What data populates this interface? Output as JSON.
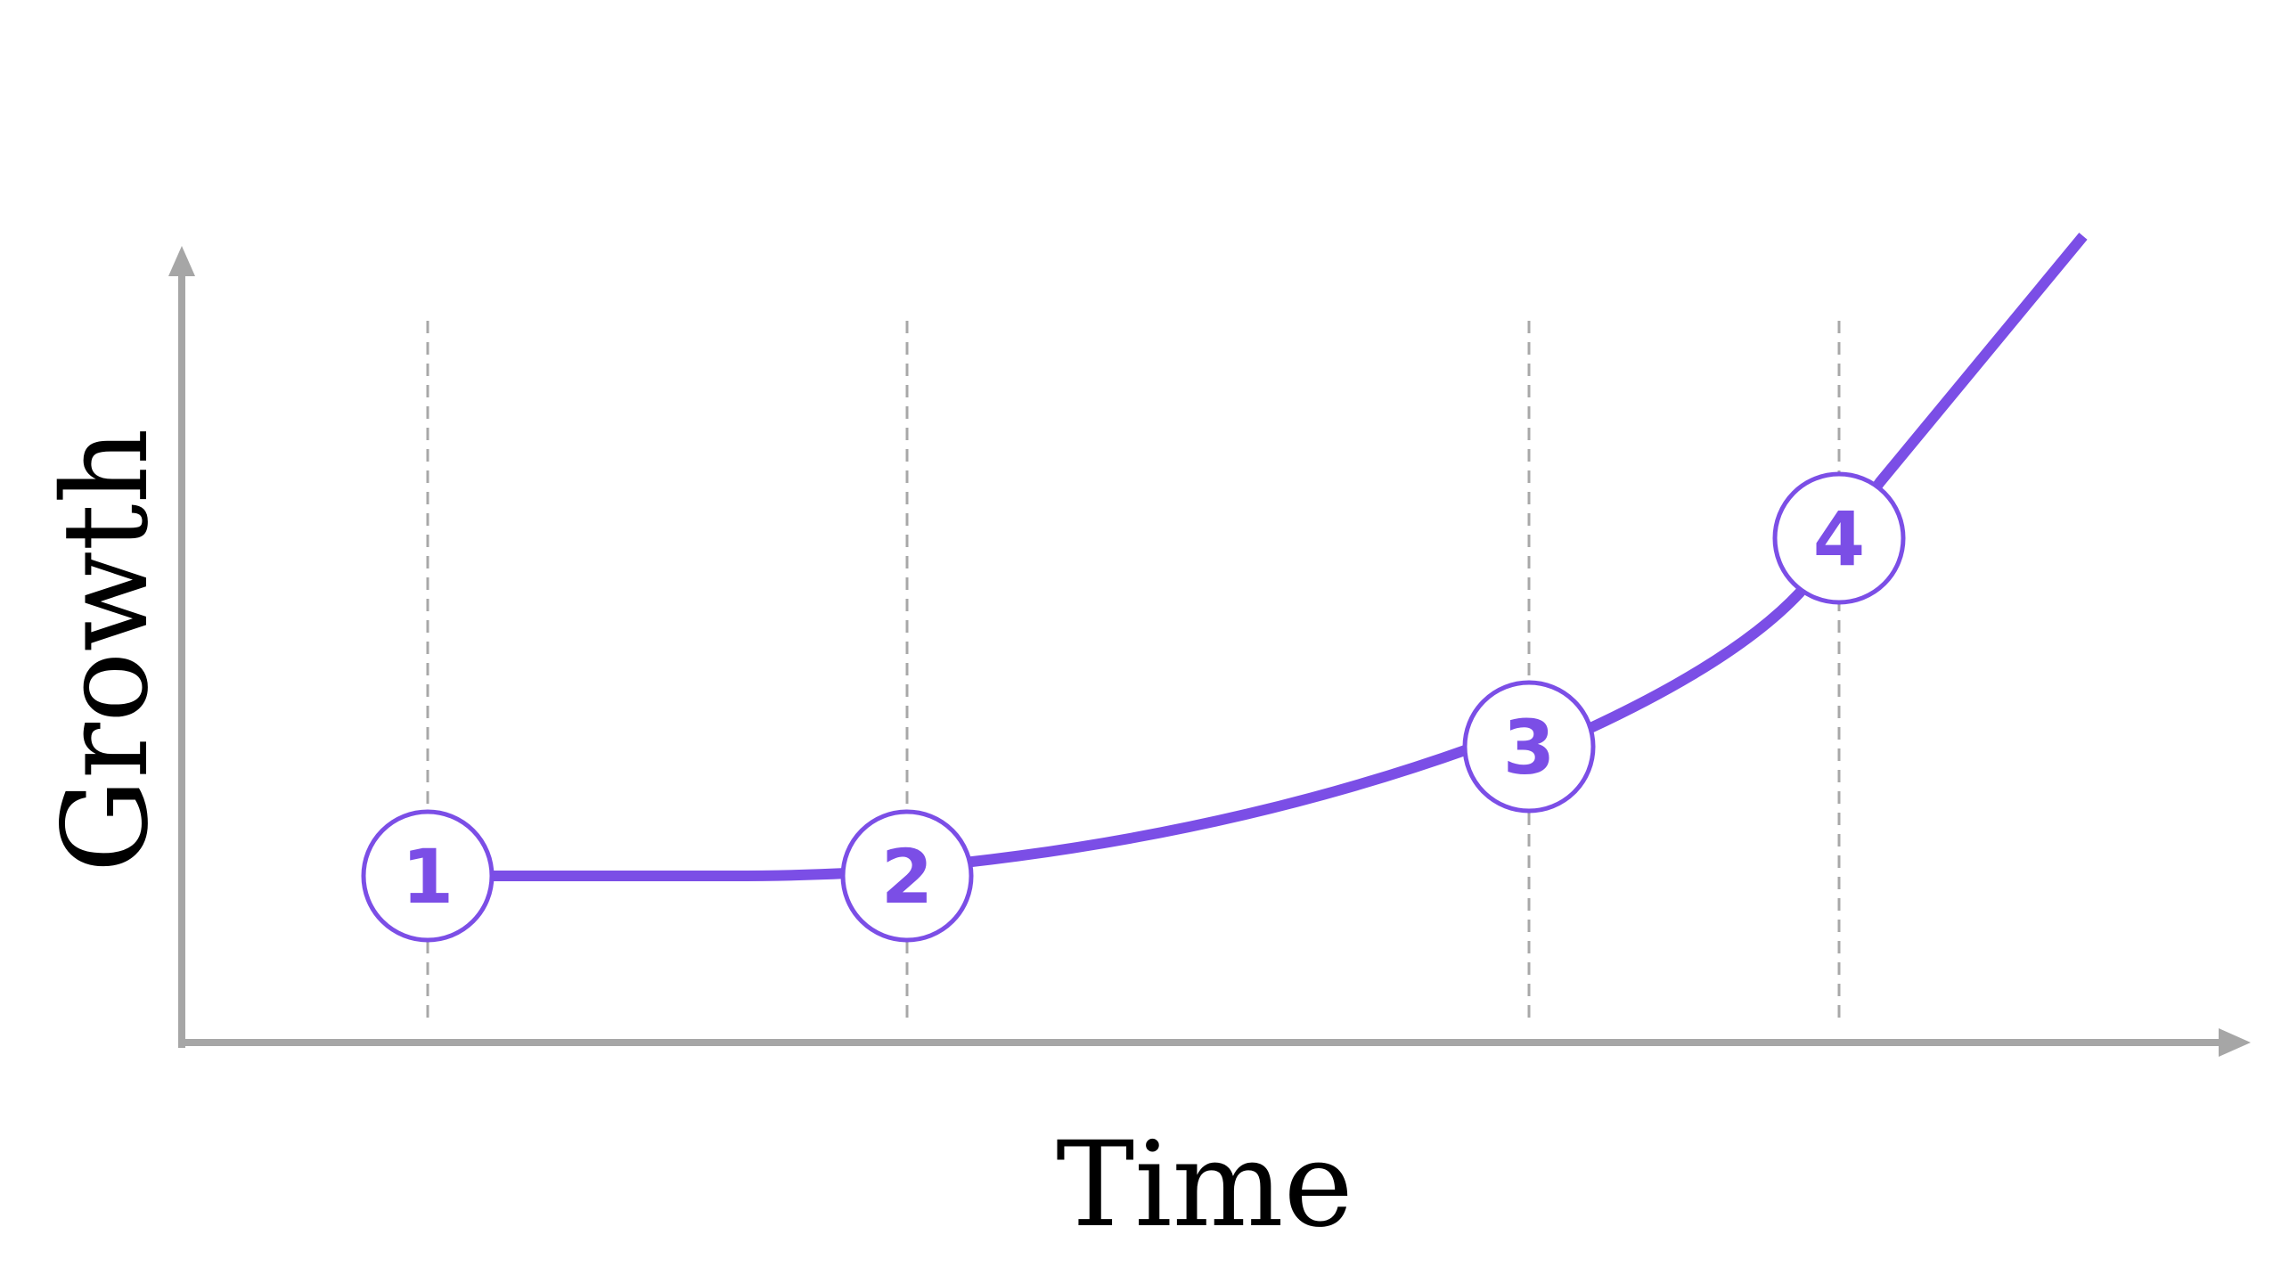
{
  "axes": {
    "x_label": "Time",
    "y_label": "Growth",
    "color": "#a6a6a6"
  },
  "curve": {
    "color": "#7b4ee6"
  },
  "stages": [
    {
      "label": "1"
    },
    {
      "label": "2"
    },
    {
      "label": "3"
    },
    {
      "label": "4"
    }
  ]
}
